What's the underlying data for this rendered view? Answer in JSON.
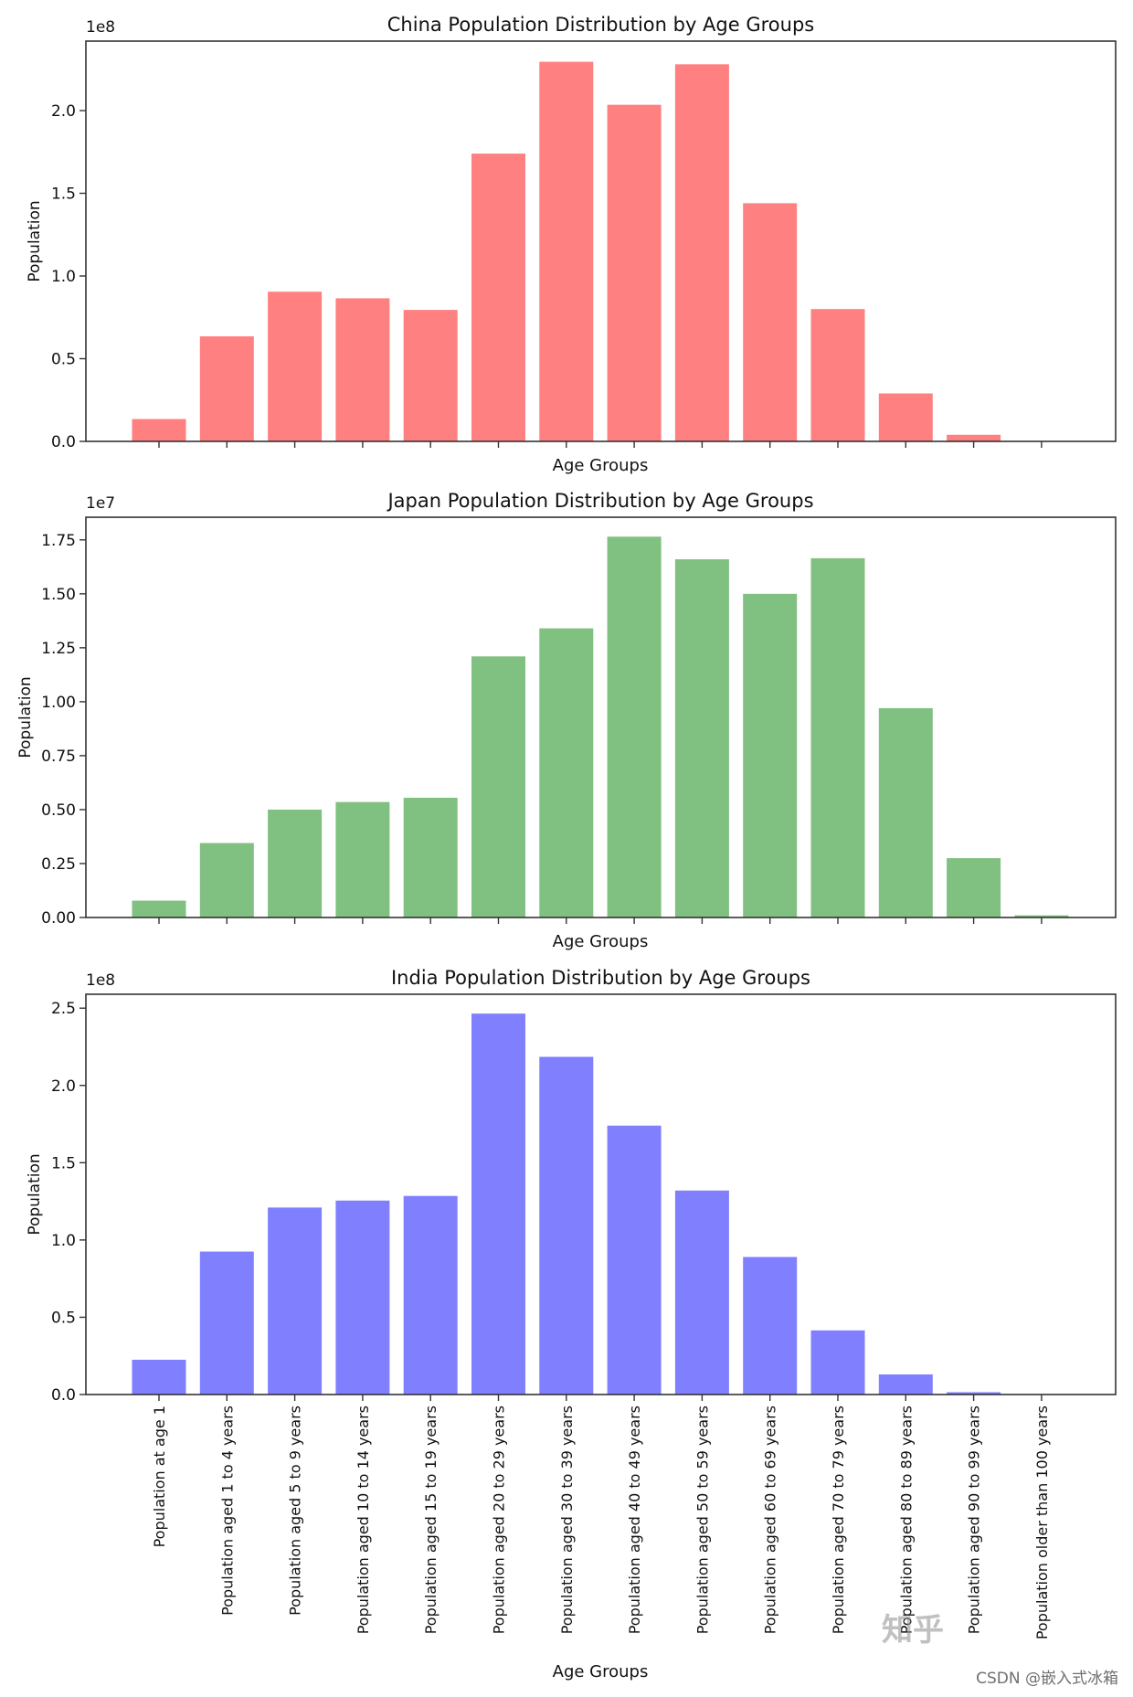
{
  "chart_data": [
    {
      "type": "bar",
      "title": "China Population Distribution by Age Groups",
      "xlabel": "Age Groups",
      "ylabel": "Population",
      "offset_label": "1e8",
      "color": "#ff8080",
      "ylim": [
        0,
        2.42
      ],
      "yticks": [
        "0.0",
        "0.5",
        "1.0",
        "1.5",
        "2.0"
      ],
      "ytick_values": [
        0,
        0.5,
        1.0,
        1.5,
        2.0
      ],
      "values": [
        0.135,
        0.635,
        0.905,
        0.865,
        0.795,
        1.74,
        2.295,
        2.035,
        2.28,
        1.44,
        0.8,
        0.29,
        0.04,
        0.002
      ]
    },
    {
      "type": "bar",
      "title": "Japan Population Distribution by Age Groups",
      "xlabel": "Age Groups",
      "ylabel": "Population",
      "offset_label": "1e7",
      "color": "#80c080",
      "ylim": [
        0,
        1.855
      ],
      "yticks": [
        "0.00",
        "0.25",
        "0.50",
        "0.75",
        "1.00",
        "1.25",
        "1.50",
        "1.75"
      ],
      "ytick_values": [
        0,
        0.25,
        0.5,
        0.75,
        1.0,
        1.25,
        1.5,
        1.75
      ],
      "values": [
        0.078,
        0.345,
        0.5,
        0.535,
        0.555,
        1.21,
        1.34,
        1.765,
        1.66,
        1.5,
        1.665,
        0.97,
        0.275,
        0.01
      ]
    },
    {
      "type": "bar",
      "title": "India Population Distribution by Age Groups",
      "xlabel": "Age Groups",
      "ylabel": "Population",
      "offset_label": "1e8",
      "color": "#8080ff",
      "ylim": [
        0,
        2.59
      ],
      "yticks": [
        "0.0",
        "0.5",
        "1.0",
        "1.5",
        "2.0",
        "2.5"
      ],
      "ytick_values": [
        0,
        0.5,
        1.0,
        1.5,
        2.0,
        2.5
      ],
      "values": [
        0.225,
        0.925,
        1.21,
        1.255,
        1.285,
        2.465,
        2.185,
        1.74,
        1.32,
        0.89,
        0.415,
        0.13,
        0.015,
        0.003
      ]
    }
  ],
  "categories": [
    "Population at age 1",
    "Population aged 1 to 4 years",
    "Population aged 5 to 9 years",
    "Population aged 10 to 14 years",
    "Population aged 15 to 19 years",
    "Population aged 20 to 29 years",
    "Population aged 30 to 39 years",
    "Population aged 40 to 49 years",
    "Population aged 50 to 59 years",
    "Population aged 60 to 69 years",
    "Population aged 70 to 79 years",
    "Population aged 80 to 89 years",
    "Population aged 90 to 99 years",
    "Population older than 100 years"
  ],
  "watermark": {
    "zhihu": "知乎",
    "csdn": "CSDN @嵌入式冰箱"
  }
}
